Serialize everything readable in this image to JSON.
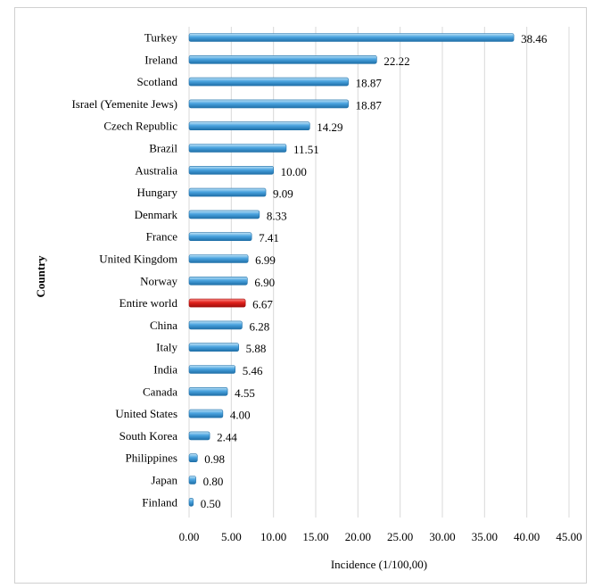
{
  "chart_data": {
    "type": "bar",
    "orientation": "horizontal",
    "title": "",
    "xlabel": "Incidence (1/100,00)",
    "ylabel": "Country",
    "xlim": [
      0,
      45
    ],
    "x_ticks": [
      "0.00",
      "5.00",
      "10.00",
      "15.00",
      "20.00",
      "25.00",
      "30.00",
      "35.00",
      "40.00",
      "45.00"
    ],
    "grid": "vertical",
    "categories": [
      "Turkey",
      "Ireland",
      "Scotland",
      "Israel (Yemenite Jews)",
      "Czech Republic",
      "Brazil",
      "Australia",
      "Hungary",
      "Denmark",
      "France",
      "United Kingdom",
      "Norway",
      "Entire world",
      "China",
      "Italy",
      "India",
      "Canada",
      "United States",
      "South Korea",
      "Philippines",
      "Japan",
      "Finland"
    ],
    "values": [
      38.46,
      22.22,
      18.87,
      18.87,
      14.29,
      11.51,
      10.0,
      9.09,
      8.33,
      7.41,
      6.99,
      6.9,
      6.67,
      6.28,
      5.88,
      5.46,
      4.55,
      4.0,
      2.44,
      0.98,
      0.8,
      0.5
    ],
    "value_labels": [
      "38.46",
      "22.22",
      "18.87",
      "18.87",
      "14.29",
      "11.51",
      "10.00",
      "9.09",
      "8.33",
      "7.41",
      "6.99",
      "6.90",
      "6.67",
      "6.28",
      "5.88",
      "5.46",
      "4.55",
      "4.00",
      "2.44",
      "0.98",
      "0.80",
      "0.50"
    ],
    "highlight_category": "Entire world",
    "colors": {
      "bar": "#4aa3df",
      "bar_dark": "#1f6fa8",
      "bar_light": "#bfe3f7",
      "highlight": "#e0201b",
      "highlight_dark": "#a00d0a",
      "highlight_light": "#ff8a85",
      "grid": "#d9d9d9"
    }
  }
}
